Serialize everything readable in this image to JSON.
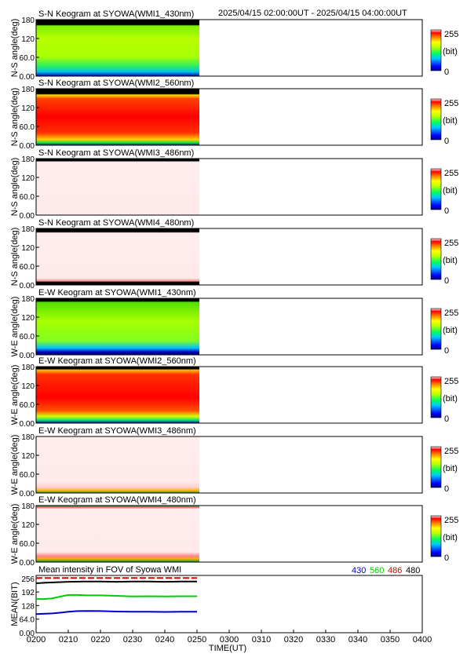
{
  "header": {
    "time_range": "2025/04/15 02:00:00UT - 2025/04/15 04:00:00UT"
  },
  "colorbar": {
    "max_label": "255",
    "unit_label": "(bit)",
    "min_label": "0"
  },
  "chart_data": [
    {
      "type": "heatmap",
      "title": "S-N Keogram at SYOWA(WMI1_430nm)",
      "ylabel": "N-S angle(deg)",
      "yticks": [
        "180",
        "120",
        "60.0",
        "0.00"
      ],
      "ylim": [
        0,
        180
      ],
      "xlim": [
        "0200",
        "0400"
      ],
      "data_until": "0250",
      "profile": "green430",
      "zlim": [
        0,
        255
      ]
    },
    {
      "type": "heatmap",
      "title": "S-N Keogram at SYOWA(WMI2_560nm)",
      "ylabel": "N-S angle(deg)",
      "yticks": [
        "180",
        "120",
        "60.0",
        "0.00"
      ],
      "ylim": [
        0,
        180
      ],
      "xlim": [
        "0200",
        "0400"
      ],
      "data_until": "0250",
      "profile": "red560",
      "zlim": [
        0,
        255
      ]
    },
    {
      "type": "heatmap",
      "title": "S-N Keogram at SYOWA(WMI3_486nm)",
      "ylabel": "N-S angle(deg)",
      "yticks": [
        "180",
        "120",
        "60.0",
        "0.00"
      ],
      "ylim": [
        0,
        180
      ],
      "xlim": [
        "0200",
        "0400"
      ],
      "data_until": "0250",
      "profile": "pink",
      "zlim": [
        0,
        255
      ]
    },
    {
      "type": "heatmap",
      "title": "S-N Keogram at SYOWA(WMI4_480nm)",
      "ylabel": "N-S angle(deg)",
      "yticks": [
        "180",
        "120",
        "60.0",
        "0.00"
      ],
      "ylim": [
        0,
        180
      ],
      "xlim": [
        "0200",
        "0400"
      ],
      "data_until": "0250",
      "profile": "pinkBlack",
      "zlim": [
        0,
        255
      ]
    },
    {
      "type": "heatmap",
      "title": "E-W Keogram at SYOWA(WMI1_430nm)",
      "ylabel": "W-E angle(deg)",
      "yticks": [
        "180",
        "120",
        "60.0",
        "0.00"
      ],
      "ylim": [
        0,
        180
      ],
      "xlim": [
        "0200",
        "0400"
      ],
      "data_until": "0250",
      "profile": "green430ew",
      "zlim": [
        0,
        255
      ]
    },
    {
      "type": "heatmap",
      "title": "E-W Keogram at SYOWA(WMI2_560nm)",
      "ylabel": "W-E angle(deg)",
      "yticks": [
        "180",
        "120",
        "60.0",
        "0.00"
      ],
      "ylim": [
        0,
        180
      ],
      "xlim": [
        "0200",
        "0400"
      ],
      "data_until": "0250",
      "profile": "red560ew",
      "zlim": [
        0,
        255
      ]
    },
    {
      "type": "heatmap",
      "title": "E-W Keogram at SYOWA(WMI3_486nm)",
      "ylabel": "W-E angle(deg)",
      "yticks": [
        "180",
        "120",
        "60.0",
        "0.00"
      ],
      "ylim": [
        0,
        180
      ],
      "xlim": [
        "0200",
        "0400"
      ],
      "data_until": "0250",
      "profile": "pinkBottom",
      "zlim": [
        0,
        255
      ]
    },
    {
      "type": "heatmap",
      "title": "E-W Keogram at SYOWA(WMI4_480nm)",
      "ylabel": "W-E angle(deg)",
      "yticks": [
        "180",
        "120",
        "60.0",
        "0.00"
      ],
      "ylim": [
        0,
        180
      ],
      "xlim": [
        "0200",
        "0400"
      ],
      "data_until": "0250",
      "profile": "pinkEdges",
      "zlim": [
        0,
        255
      ]
    },
    {
      "type": "line",
      "title": "Mean intensity in FOV of Syowa WMI",
      "ylabel": "MEAN(BIT)",
      "xlabel": "TIME(UT)",
      "yticks": [
        "256",
        "192",
        "128",
        "64.0",
        "0.00"
      ],
      "ylim": [
        0,
        270
      ],
      "xticks": [
        "0200",
        "0210",
        "0220",
        "0230",
        "0240",
        "0250",
        "0300",
        "0310",
        "0320",
        "0330",
        "0340",
        "0350",
        "0400"
      ],
      "xlim": [
        0,
        120
      ],
      "series": [
        {
          "name": "430",
          "color": "#0000cc",
          "x": [
            0,
            2,
            5,
            8,
            10,
            13,
            16,
            20,
            25,
            30,
            35,
            40,
            45,
            50
          ],
          "values": [
            88,
            89,
            91,
            95,
            99,
            102,
            103,
            102,
            100,
            99,
            99,
            98,
            99,
            99
          ]
        },
        {
          "name": "560",
          "color": "#00cc00",
          "x": [
            0,
            2,
            5,
            8,
            10,
            13,
            16,
            20,
            25,
            30,
            35,
            40,
            45,
            50
          ],
          "values": [
            160,
            158,
            162,
            172,
            178,
            178,
            176,
            176,
            174,
            171,
            172,
            171,
            172,
            172
          ]
        },
        {
          "name": "486",
          "color": "#dd0000",
          "x": [
            0,
            5,
            10,
            15,
            20,
            25,
            30,
            35,
            40,
            45,
            50
          ],
          "values": [
            258,
            258,
            258,
            258,
            258,
            258,
            258,
            258,
            258,
            258,
            258
          ]
        },
        {
          "name": "480",
          "color": "#000000",
          "x": [
            0,
            3,
            6,
            10,
            15,
            20,
            25,
            30,
            35,
            40,
            45,
            50
          ],
          "values": [
            233,
            236,
            238,
            240,
            241,
            241,
            240,
            241,
            241,
            240,
            241,
            241
          ]
        }
      ]
    }
  ]
}
